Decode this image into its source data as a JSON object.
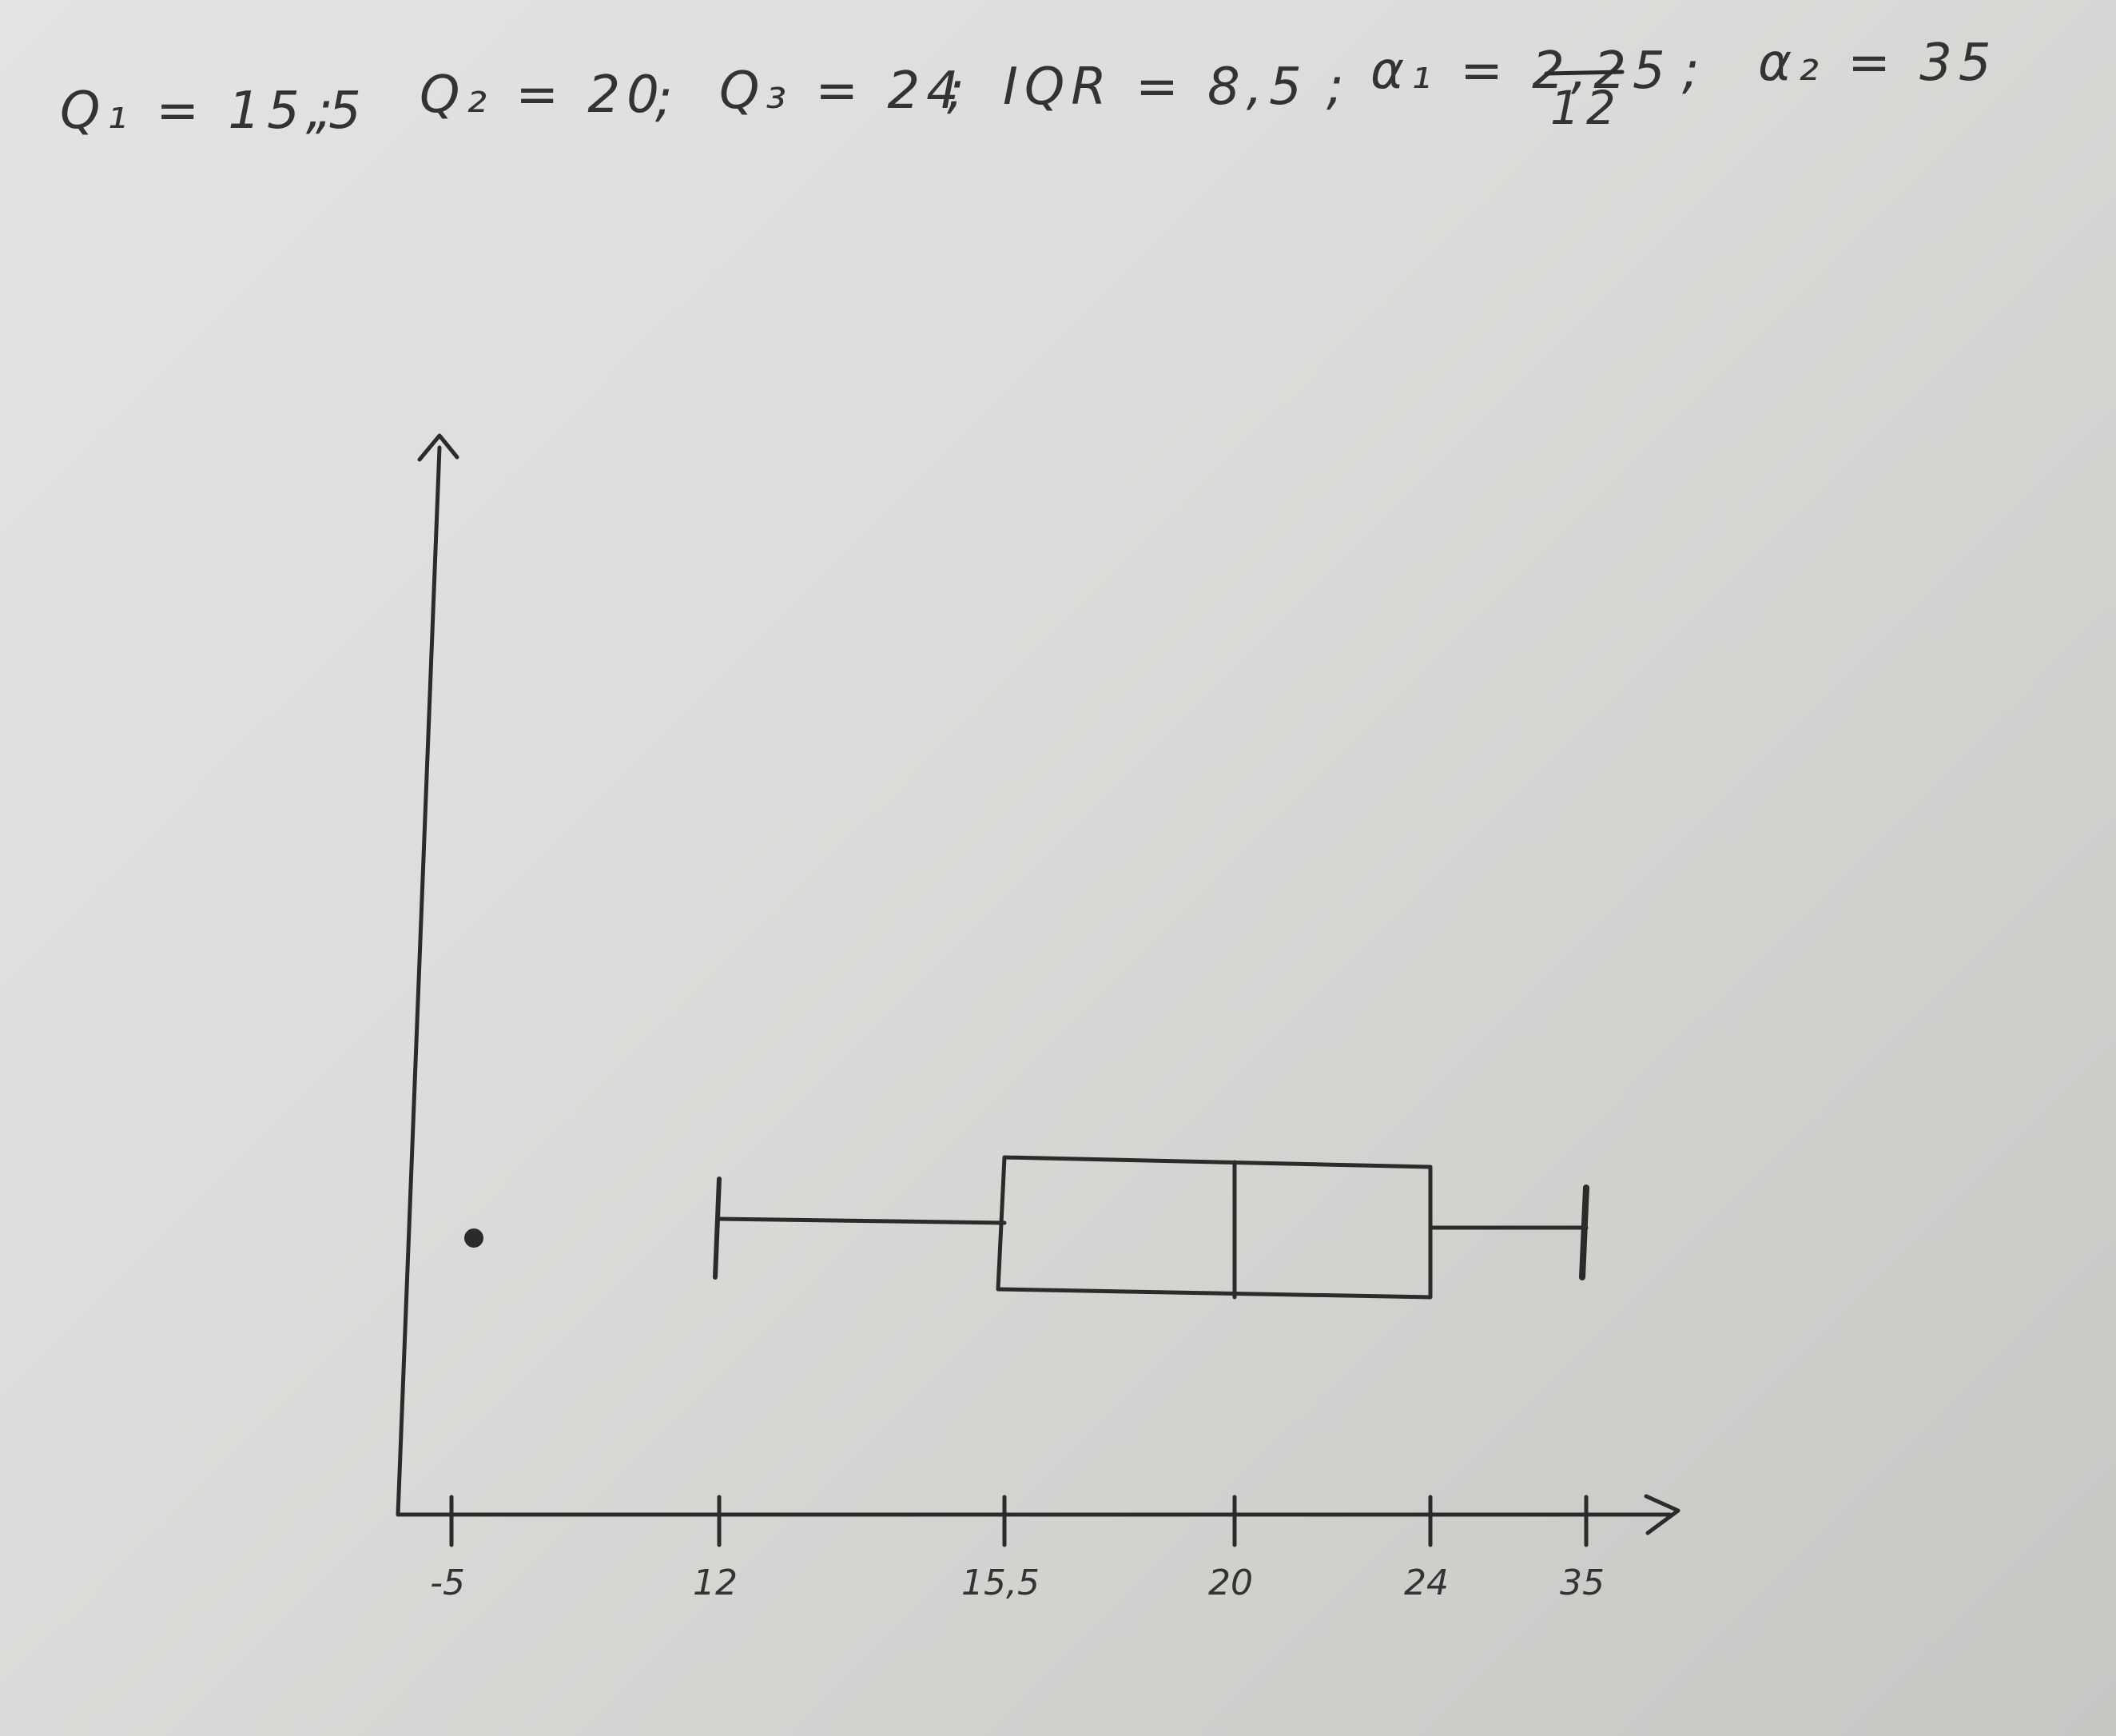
{
  "header": {
    "items": [
      "Q₁ = 15,5",
      "Q₂ = 20",
      "Q₃ = 24",
      "IQR = 8,5",
      "α₁ = 2,25",
      "α₂ = 35"
    ],
    "correction": "12"
  },
  "chart_data": {
    "type": "boxplot",
    "title": "",
    "xlabel": "",
    "ylabel": "",
    "x_ticks": [
      "-5",
      "12",
      "15,5",
      "20",
      "24",
      "35"
    ],
    "x_tick_values": [
      -5,
      12,
      15.5,
      20,
      24,
      35
    ],
    "box": {
      "whisker_low": 12,
      "q1": 15.5,
      "median": 20,
      "q3": 24,
      "whisker_high": 35
    },
    "outliers": [
      -5
    ],
    "grid": false
  },
  "colors": {
    "ink": "#2b2b2b",
    "paper": "#dcdcda"
  }
}
